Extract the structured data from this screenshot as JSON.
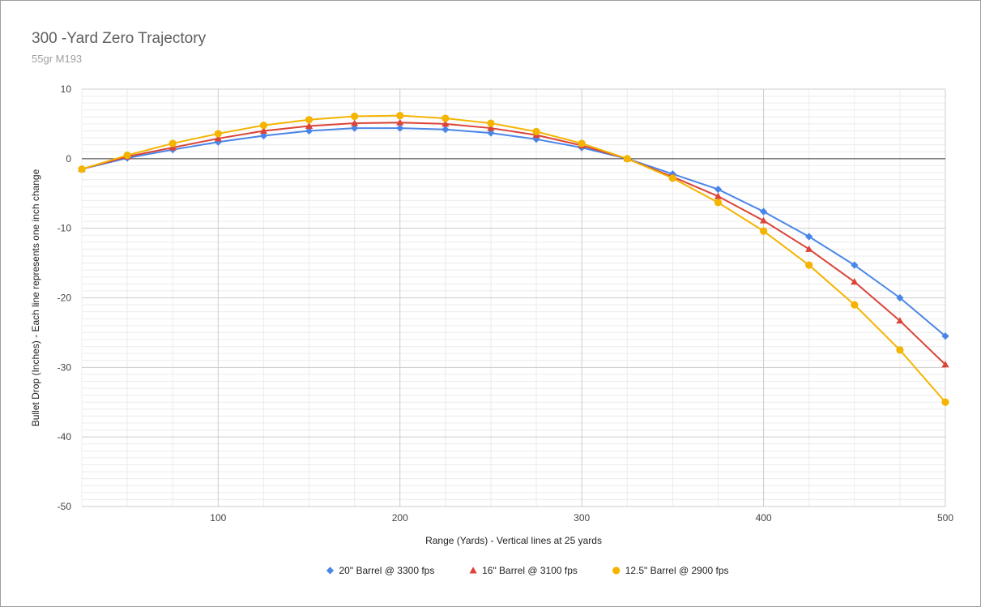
{
  "chart_data": {
    "type": "line",
    "title": "300 -Yard Zero Trajectory",
    "subtitle": "55gr M193",
    "xlabel": "Range (Yards) - Vertical lines at 25 yards",
    "ylabel": "Bullet Drop (Inches) - Each line represents one inch change",
    "xlim": [
      25,
      500
    ],
    "ylim": [
      -50,
      10
    ],
    "x_major_ticks": [
      100,
      200,
      300,
      400,
      500
    ],
    "x_minor_step": 25,
    "y_major_ticks": [
      10,
      0,
      -10,
      -20,
      -30,
      -40,
      -50
    ],
    "y_minor_step": 1,
    "legend_position": "bottom",
    "grid": true,
    "x": [
      25,
      50,
      75,
      100,
      125,
      150,
      175,
      200,
      225,
      250,
      275,
      300,
      325,
      350,
      375,
      400,
      425,
      450,
      475,
      500
    ],
    "series": [
      {
        "name": "20\" Barrel @ 3300 fps",
        "color": "#4a86e8",
        "marker": "diamond",
        "values": [
          -1.5,
          0.1,
          1.3,
          2.4,
          3.3,
          4.0,
          4.4,
          4.4,
          4.2,
          3.7,
          2.8,
          1.6,
          0,
          -2.2,
          -4.4,
          -7.6,
          -11.2,
          -15.3,
          -20.0,
          -25.5
        ]
      },
      {
        "name": "16\" Barrel @ 3100 fps",
        "color": "#db4437",
        "marker": "triangle",
        "values": [
          -1.5,
          0.3,
          1.6,
          2.9,
          4.0,
          4.7,
          5.1,
          5.2,
          5.0,
          4.4,
          3.4,
          1.9,
          0,
          -2.6,
          -5.4,
          -8.9,
          -13.0,
          -17.7,
          -23.3,
          -29.6
        ]
      },
      {
        "name": "12.5\" Barrel @ 2900 fps",
        "color": "#f4b400",
        "marker": "circle",
        "values": [
          -1.5,
          0.5,
          2.2,
          3.6,
          4.8,
          5.6,
          6.1,
          6.2,
          5.8,
          5.1,
          3.9,
          2.2,
          0,
          -2.8,
          -6.3,
          -10.4,
          -15.3,
          -21.0,
          -27.5,
          -35.0
        ]
      }
    ]
  }
}
